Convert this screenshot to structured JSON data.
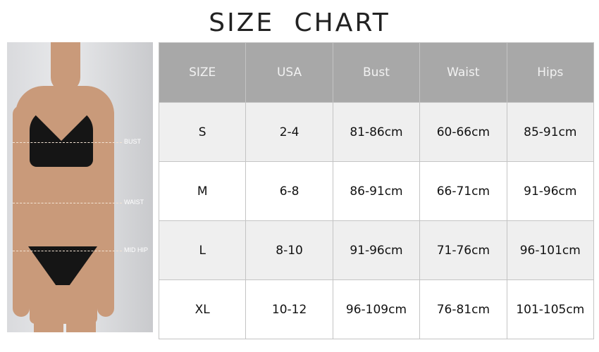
{
  "title": "SIZE  CHART",
  "figure": {
    "labels": {
      "bust": "BUST",
      "waist": "WAIST",
      "hip": "MID HIP"
    }
  },
  "table": {
    "headers": [
      "SIZE",
      "USA",
      "Bust",
      "Waist",
      "Hips"
    ],
    "rows": [
      [
        "S",
        "2-4",
        "81-86cm",
        "60-66cm",
        "85-91cm"
      ],
      [
        "M",
        "6-8",
        "86-91cm",
        "66-71cm",
        "91-96cm"
      ],
      [
        "L",
        "8-10",
        "91-96cm",
        "71-76cm",
        "96-101cm"
      ],
      [
        "XL",
        "10-12",
        "96-109cm",
        "76-81cm",
        "101-105cm"
      ]
    ],
    "colors": {
      "header_bg": "#a8a8a8",
      "alt_row_bg": "#efefef"
    }
  }
}
